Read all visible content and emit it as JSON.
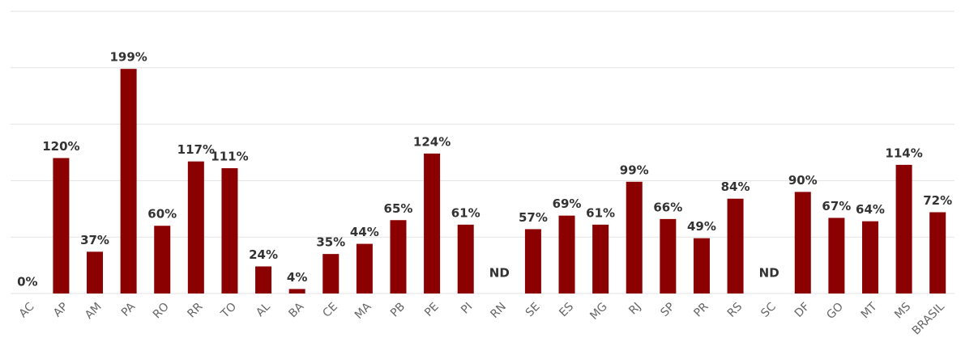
{
  "chart_data": {
    "type": "bar",
    "categories": [
      "AC",
      "AP",
      "AM",
      "PA",
      "RO",
      "RR",
      "TO",
      "AL",
      "BA",
      "CE",
      "MA",
      "PB",
      "PE",
      "PI",
      "RN",
      "SE",
      "ES",
      "MG",
      "RJ",
      "SP",
      "PR",
      "RS",
      "SC",
      "DF",
      "GO",
      "MT",
      "MS",
      "BRASIL"
    ],
    "values": [
      0,
      120,
      37,
      199,
      60,
      117,
      111,
      24,
      4,
      35,
      44,
      65,
      124,
      61,
      null,
      57,
      69,
      61,
      99,
      66,
      49,
      84,
      null,
      90,
      67,
      64,
      114,
      72
    ],
    "value_labels": [
      "0%",
      "120%",
      "37%",
      "199%",
      "60%",
      "117%",
      "111%",
      "24%",
      "4%",
      "35%",
      "44%",
      "65%",
      "124%",
      "61%",
      "ND",
      "57%",
      "69%",
      "61%",
      "99%",
      "66%",
      "49%",
      "84%",
      "ND",
      "90%",
      "67%",
      "64%",
      "114%",
      "72%"
    ],
    "color": "#8b0000",
    "ylim": [
      0,
      250
    ],
    "yticks": [
      0,
      50,
      100,
      150,
      200,
      250
    ],
    "grid": true
  }
}
